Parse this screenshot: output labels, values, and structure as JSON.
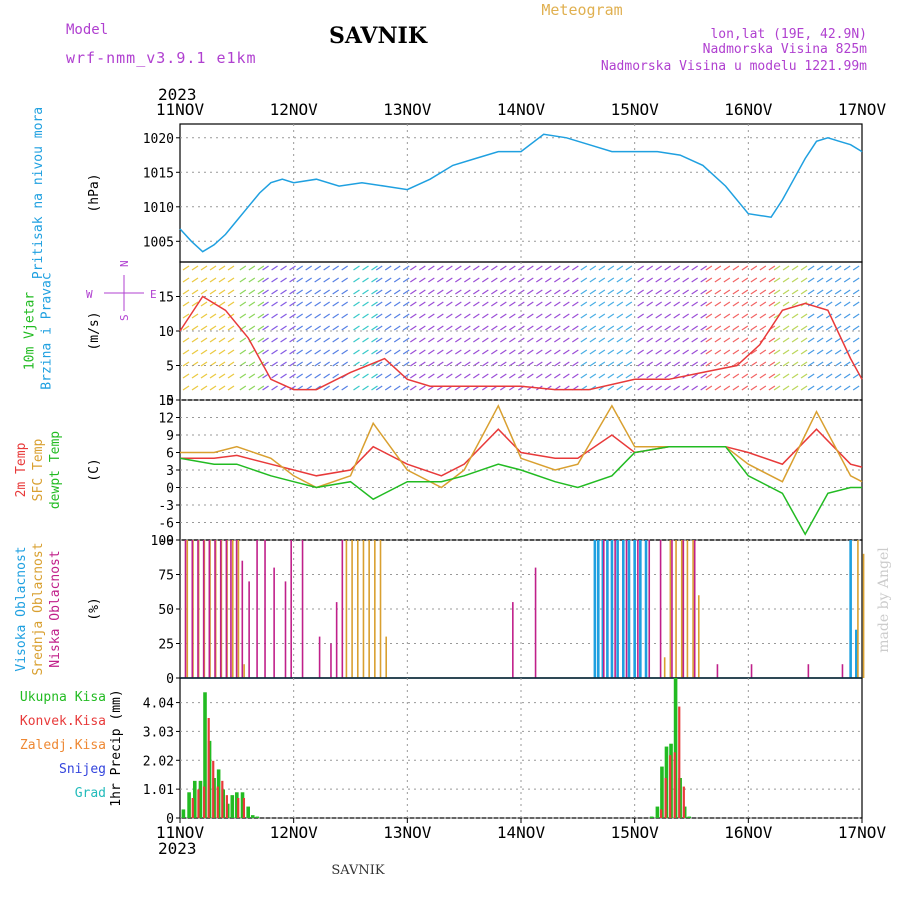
{
  "header": {
    "model_label": "Model",
    "model_name": "wrf-nmm_v3.9.1 e1km",
    "station": "SAVNIK",
    "product": "Meteogram",
    "coords": "lon,lat (19E, 42.9N)",
    "elevation": "Nadmorska Visina 825m",
    "model_elevation": "Nadmorska Visina u modelu 1221.99m",
    "footer_station": "SAVNIK",
    "credit": "made by Angel"
  },
  "colors": {
    "pressure": "#1fa0e0",
    "temp2m": "#e83a3a",
    "sfc": "#d9a030",
    "dewpt": "#22bb22",
    "high_cloud": "#1fa0e0",
    "mid_cloud": "#d9a030",
    "low_cloud": "#c0208a",
    "total_precip": "#22bb22",
    "conv_precip": "#e83a3a",
    "frz_precip": "#ee8833",
    "snow": "#3344dd",
    "hail": "#22bbbb",
    "title_purple": "#b040d0",
    "meteogram": "#e0b050"
  },
  "chart_data": {
    "type": "line",
    "time_axis": {
      "year": "2023",
      "ticks": [
        "11NOV",
        "12NOV",
        "13NOV",
        "14NOV",
        "15NOV",
        "16NOV",
        "17NOV"
      ],
      "range_days": [
        0,
        6
      ]
    },
    "panels": [
      {
        "id": "pressure",
        "labels": [
          "Pritisak na nivou mora"
        ],
        "unit": "(hPa)",
        "ylim": [
          1002,
          1022
        ],
        "yticks": [
          1005,
          1010,
          1015,
          1020
        ],
        "series": [
          {
            "color_key": "pressure",
            "x": [
              0,
              0.1,
              0.2,
              0.3,
              0.4,
              0.5,
              0.6,
              0.7,
              0.8,
              0.9,
              1.0,
              1.2,
              1.4,
              1.6,
              1.8,
              2.0,
              2.2,
              2.4,
              2.6,
              2.8,
              3.0,
              3.2,
              3.4,
              3.6,
              3.8,
              4.0,
              4.2,
              4.4,
              4.6,
              4.8,
              5.0,
              5.2,
              5.3,
              5.4,
              5.5,
              5.6,
              5.7,
              5.8,
              5.9,
              6.0
            ],
            "values": [
              1006.8,
              1005,
              1003.5,
              1004.5,
              1006,
              1008,
              1010,
              1012,
              1013.5,
              1014,
              1013.5,
              1014,
              1013,
              1013.5,
              1013,
              1012.5,
              1014,
              1016,
              1017,
              1018,
              1018,
              1020.5,
              1020,
              1019,
              1018,
              1018,
              1018,
              1017.5,
              1016,
              1013,
              1009,
              1008.5,
              1011,
              1014,
              1017,
              1019.5,
              1020,
              1019.5,
              1019,
              1018
            ]
          }
        ]
      },
      {
        "id": "wind",
        "labels": [
          "10m Vjetar",
          "Brzina i Pravac"
        ],
        "unit": "(m/s)",
        "ylim": [
          0,
          20
        ],
        "yticks": [
          0,
          5,
          10,
          15
        ],
        "compass": {
          "n": "N",
          "s": "S",
          "w": "W",
          "e": "E"
        },
        "series": [
          {
            "name": "speed",
            "color_key": "conv_precip",
            "x": [
              0,
              0.2,
              0.4,
              0.6,
              0.8,
              1.0,
              1.2,
              1.5,
              1.8,
              2.0,
              2.2,
              2.5,
              2.8,
              3.0,
              3.3,
              3.6,
              4.0,
              4.3,
              4.6,
              4.9,
              5.1,
              5.3,
              5.5,
              5.7,
              5.9,
              6.0
            ],
            "values": [
              10,
              15,
              13,
              9,
              3,
              1.5,
              1.5,
              4,
              6,
              3,
              2,
              2,
              2,
              2,
              1.5,
              1.5,
              3,
              3,
              4,
              5,
              8,
              13,
              14,
              13,
              6,
              3
            ]
          }
        ]
      },
      {
        "id": "temperature",
        "labels": [
          "2m Temp",
          "SFC Temp",
          "dewpt Temp"
        ],
        "unit": "(C)",
        "ylim": [
          -9,
          15
        ],
        "yticks": [
          -9,
          -6,
          -3,
          0,
          3,
          6,
          9,
          12,
          15
        ],
        "series": [
          {
            "name": "2m Temp",
            "color_key": "temp2m",
            "x": [
              0,
              0.3,
              0.5,
              0.8,
              1.0,
              1.2,
              1.5,
              1.7,
              2.0,
              2.3,
              2.5,
              2.8,
              3.0,
              3.3,
              3.5,
              3.8,
              4.0,
              4.3,
              4.6,
              4.8,
              5.0,
              5.3,
              5.6,
              5.9,
              6.0
            ],
            "values": [
              5,
              5,
              5.5,
              4,
              3,
              2,
              3,
              7,
              4,
              2,
              4,
              10,
              6,
              5,
              5,
              9,
              6,
              7,
              7,
              7,
              6,
              4,
              10,
              4,
              3.5
            ]
          },
          {
            "name": "SFC Temp",
            "color_key": "sfc",
            "x": [
              0,
              0.3,
              0.5,
              0.8,
              1.0,
              1.2,
              1.5,
              1.7,
              2.0,
              2.3,
              2.5,
              2.8,
              3.0,
              3.3,
              3.5,
              3.8,
              4.0,
              4.3,
              4.6,
              4.8,
              5.0,
              5.3,
              5.6,
              5.9,
              6.0
            ],
            "values": [
              6,
              6,
              7,
              5,
              2,
              0,
              2,
              11,
              3,
              0,
              3,
              14,
              5,
              3,
              4,
              14,
              7,
              7,
              7,
              7,
              4,
              1,
              13,
              2,
              1
            ]
          },
          {
            "name": "dewpt Temp",
            "color_key": "dewpt",
            "x": [
              0,
              0.3,
              0.5,
              0.8,
              1.0,
              1.2,
              1.5,
              1.7,
              2.0,
              2.3,
              2.5,
              2.8,
              3.0,
              3.3,
              3.5,
              3.8,
              4.0,
              4.3,
              4.6,
              4.8,
              5.0,
              5.3,
              5.5,
              5.7,
              5.9,
              6.0
            ],
            "values": [
              5,
              4,
              4,
              2,
              1,
              0,
              1,
              -2,
              1,
              1,
              2,
              4,
              3,
              1,
              0,
              2,
              6,
              7,
              7,
              7,
              2,
              -1,
              -8,
              -1,
              0,
              0
            ]
          }
        ]
      },
      {
        "id": "cloud",
        "labels": [
          "Visoka Oblacnost",
          "Srednja Oblacnost",
          "Niska Oblacnost"
        ],
        "unit": "(%)",
        "ylim": [
          0,
          100
        ],
        "yticks": [
          0,
          25,
          50,
          75,
          100
        ],
        "series": [
          {
            "name": "high",
            "color_key": "high_cloud",
            "x": [
              3.65,
              3.68,
              3.72,
              3.76,
              3.8,
              3.85,
              3.9,
              3.95,
              4.0,
              4.05,
              4.1,
              5.9,
              5.95
            ],
            "values": [
              100,
              100,
              100,
              100,
              100,
              100,
              100,
              100,
              100,
              100,
              100,
              100,
              35
            ]
          },
          {
            "name": "mid",
            "color_key": "mid_cloud",
            "x": [
              0.05,
              0.1,
              0.15,
              0.2,
              0.25,
              0.3,
              0.35,
              0.4,
              0.45,
              0.5,
              0.55,
              1.45,
              1.5,
              1.55,
              1.6,
              1.65,
              1.7,
              1.75,
              1.8,
              4.25,
              4.3,
              4.35,
              4.4,
              4.45,
              4.5,
              4.55,
              5.95,
              6.0
            ],
            "values": [
              100,
              100,
              100,
              100,
              100,
              100,
              100,
              100,
              100,
              100,
              10,
              100,
              100,
              100,
              100,
              100,
              100,
              100,
              30,
              15,
              100,
              100,
              100,
              100,
              100,
              60,
              100,
              90
            ]
          },
          {
            "name": "low",
            "color_key": "low_cloud",
            "x": [
              0.02,
              0.08,
              0.13,
              0.18,
              0.23,
              0.28,
              0.33,
              0.38,
              0.42,
              0.47,
              0.52,
              0.58,
              0.65,
              0.72,
              0.8,
              0.9,
              0.95,
              1.05,
              1.2,
              1.3,
              1.35,
              1.4,
              2.9,
              3.1,
              3.7,
              3.8,
              3.9,
              4.0,
              4.1,
              4.2,
              4.3,
              4.4,
              4.5,
              4.7,
              5.0,
              5.5,
              5.8
            ],
            "values": [
              100,
              100,
              100,
              100,
              100,
              100,
              100,
              100,
              100,
              100,
              85,
              70,
              100,
              100,
              80,
              70,
              100,
              100,
              30,
              25,
              55,
              100,
              55,
              80,
              100,
              100,
              100,
              100,
              100,
              100,
              100,
              100,
              100,
              10,
              10,
              10,
              10
            ]
          }
        ]
      },
      {
        "id": "precip",
        "labels": [
          "Ukupna Kisa",
          "Konvek.Kisa",
          "Zaledj.Kisa",
          "Snijeg",
          "Grad"
        ],
        "unit": "1hr Precip (mm)",
        "ylim": [
          0,
          4.9
        ],
        "yticks": [
          0,
          1.01,
          2.02,
          3.03,
          4.04
        ],
        "ytick_labels": [
          "0",
          "1.01",
          "2.02",
          "3.03",
          "4.04"
        ],
        "series": [
          {
            "name": "Ukupna Kisa",
            "color_key": "total_precip",
            "x": [
              0.03,
              0.08,
              0.13,
              0.18,
              0.22,
              0.26,
              0.3,
              0.34,
              0.38,
              0.42,
              0.46,
              0.5,
              0.55,
              0.6,
              0.64,
              0.68,
              4.15,
              4.2,
              4.24,
              4.28,
              4.32,
              4.36,
              4.4,
              4.44,
              4.48
            ],
            "values": [
              0.3,
              0.9,
              1.3,
              1.3,
              4.4,
              2.7,
              1.4,
              1.7,
              1.0,
              0.5,
              0.8,
              0.9,
              0.9,
              0.4,
              0.1,
              0.05,
              0.05,
              0.4,
              1.8,
              2.5,
              2.6,
              4.9,
              1.4,
              0.4,
              0.05
            ]
          },
          {
            "name": "Konvek.Kisa",
            "color_key": "conv_precip",
            "x": [
              0.1,
              0.15,
              0.2,
              0.24,
              0.28,
              0.32,
              0.36,
              0.4,
              0.5,
              0.55,
              4.22,
              4.26,
              4.3,
              4.34,
              4.38,
              4.42
            ],
            "values": [
              0.7,
              1.0,
              1.1,
              3.5,
              2.0,
              1.1,
              1.3,
              0.8,
              0.7,
              0.7,
              0.3,
              1.4,
              2.2,
              2.3,
              3.9,
              1.1
            ]
          }
        ]
      }
    ]
  }
}
